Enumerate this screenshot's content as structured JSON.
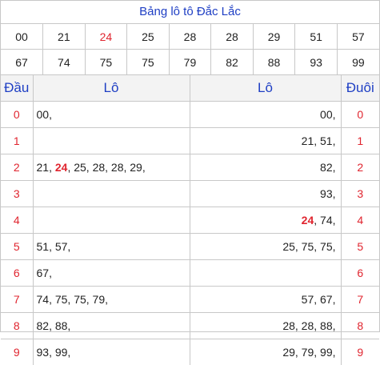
{
  "title": "Bảng lô tô Đắc Lắc",
  "numbers_row1": [
    {
      "text": "00",
      "hl": false
    },
    {
      "text": "21",
      "hl": false
    },
    {
      "text": "24",
      "hl": true
    },
    {
      "text": "25",
      "hl": false
    },
    {
      "text": "28",
      "hl": false
    },
    {
      "text": "28",
      "hl": false
    },
    {
      "text": "29",
      "hl": false
    },
    {
      "text": "51",
      "hl": false
    },
    {
      "text": "57",
      "hl": false
    }
  ],
  "numbers_row2": [
    {
      "text": "67",
      "hl": false
    },
    {
      "text": "74",
      "hl": false
    },
    {
      "text": "75",
      "hl": false
    },
    {
      "text": "75",
      "hl": false
    },
    {
      "text": "79",
      "hl": false
    },
    {
      "text": "82",
      "hl": false
    },
    {
      "text": "88",
      "hl": false
    },
    {
      "text": "93",
      "hl": false
    },
    {
      "text": "99",
      "hl": false
    }
  ],
  "headers": {
    "dau": "Đầu",
    "lo_left": "Lô",
    "lo_right": "Lô",
    "duoi": "Đuôi"
  },
  "rows": [
    {
      "dau": "0",
      "left": [
        {
          "t": "00,",
          "hl": false
        }
      ],
      "right": [
        {
          "t": "00,",
          "hl": false
        }
      ],
      "duoi": "0"
    },
    {
      "dau": "1",
      "left": [],
      "right": [
        {
          "t": "21, 51,",
          "hl": false
        }
      ],
      "duoi": "1"
    },
    {
      "dau": "2",
      "left": [
        {
          "t": "21, ",
          "hl": false
        },
        {
          "t": "24",
          "hl": true
        },
        {
          "t": ", 25, 28, 28, 29,",
          "hl": false
        }
      ],
      "right": [
        {
          "t": "82,",
          "hl": false
        }
      ],
      "duoi": "2"
    },
    {
      "dau": "3",
      "left": [],
      "right": [
        {
          "t": "93,",
          "hl": false
        }
      ],
      "duoi": "3"
    },
    {
      "dau": "4",
      "left": [],
      "right": [
        {
          "t": "24",
          "hl": true
        },
        {
          "t": ", 74,",
          "hl": false
        }
      ],
      "duoi": "4"
    },
    {
      "dau": "5",
      "left": [
        {
          "t": "51, 57,",
          "hl": false
        }
      ],
      "right": [
        {
          "t": "25, 75, 75,",
          "hl": false
        }
      ],
      "duoi": "5"
    },
    {
      "dau": "6",
      "left": [
        {
          "t": "67,",
          "hl": false
        }
      ],
      "right": [],
      "duoi": "6"
    },
    {
      "dau": "7",
      "left": [
        {
          "t": "74, 75, 75, 79,",
          "hl": false
        }
      ],
      "right": [
        {
          "t": "57, 67,",
          "hl": false
        }
      ],
      "duoi": "7"
    },
    {
      "dau": "8",
      "left": [
        {
          "t": "82, 88,",
          "hl": false
        }
      ],
      "right": [
        {
          "t": "28, 28, 88,",
          "hl": false
        }
      ],
      "duoi": "8"
    },
    {
      "dau": "9",
      "left": [
        {
          "t": "93, 99,",
          "hl": false
        }
      ],
      "right": [
        {
          "t": "29, 79, 99,",
          "hl": false
        }
      ],
      "duoi": "9"
    }
  ],
  "colors": {
    "title_blue": "#1f3fc4",
    "highlight_red": "#e0252f",
    "border": "#c8c8c8"
  }
}
